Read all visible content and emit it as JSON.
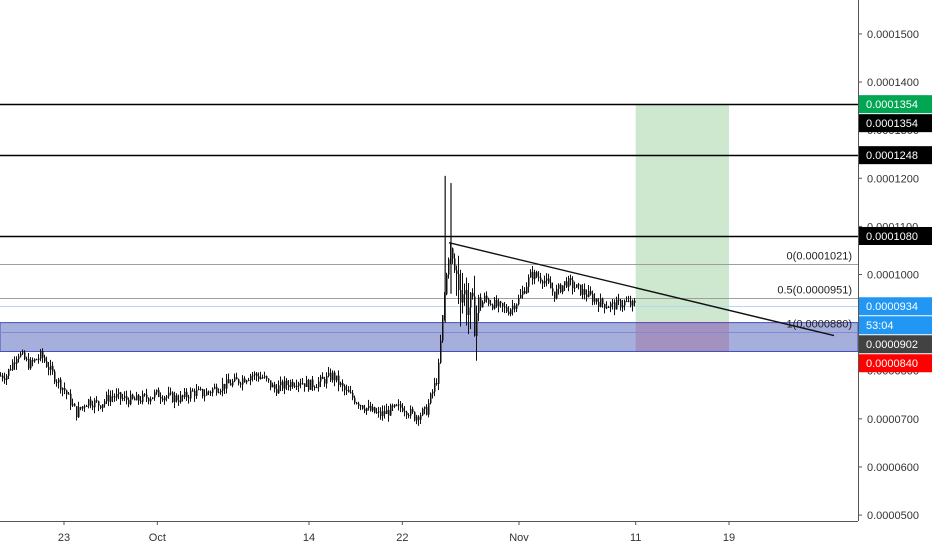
{
  "chart_data": {
    "type": "candlestick",
    "y_ticks": [
      "0.0001500",
      "0.0001400",
      "0.0001300",
      "0.0001200",
      "0.0001100",
      "0.0001000",
      "0.0000900",
      "0.0000800",
      "0.0000700",
      "0.0000600",
      "0.0000500"
    ],
    "x_ticks": [
      "23",
      "Oct",
      "14",
      "22",
      "Nov",
      "11",
      "19"
    ],
    "x_dates": [
      "2019-09-23",
      "2019-10-01",
      "2019-10-14",
      "2019-10-22",
      "2019-11-01",
      "2019-11-11",
      "2019-11-19"
    ],
    "ylim": [
      4.96e-05,
      0.0001558
    ],
    "horizontal_levels": [
      {
        "price": 0.0001354,
        "color": "#000000"
      },
      {
        "price": 0.0001248,
        "color": "#000000"
      },
      {
        "price": 0.000108,
        "color": "#000000"
      }
    ],
    "fib_levels": [
      {
        "label": "0(0.0001021)",
        "price": 0.0001021
      },
      {
        "label": "0.5(0.0000951)",
        "price": 9.51e-05
      },
      {
        "label": "1(0.0000880)",
        "price": 8.8e-05
      }
    ],
    "price_tags": [
      {
        "text": "0.0001354",
        "price": 0.0001354,
        "bg": "#00a651",
        "fg": "#ffffff"
      },
      {
        "text": "0.0001354",
        "price": 0.0001354,
        "bg": "#000000",
        "fg": "#ffffff"
      },
      {
        "text": "0.0001248",
        "price": 0.0001248,
        "bg": "#000000",
        "fg": "#ffffff"
      },
      {
        "text": "0.0001080",
        "price": 0.000108,
        "bg": "#000000",
        "fg": "#ffffff"
      },
      {
        "text": "0.0000934",
        "price": 9.34e-05,
        "bg": "#2196f3",
        "fg": "#ffffff"
      },
      {
        "text": "53:04",
        "price": 9.17e-05,
        "bg": "#2196f3",
        "fg": "#ffffff"
      },
      {
        "text": "0.0000902",
        "price": 9.02e-05,
        "bg": "#424242",
        "fg": "#ffffff"
      },
      {
        "text": "0.0000840",
        "price": 8.4e-05,
        "bg": "#ff0000",
        "fg": "#ffffff"
      }
    ],
    "position": {
      "entry": 9.02e-05,
      "target": 0.0001354,
      "stop": 8.4e-05,
      "start_date": "2019-11-11",
      "end_date": "2019-11-19"
    },
    "trendline": {
      "from": [
        "2019-10-26",
        0.0001066
      ],
      "to": [
        "2019-11-28",
        8.73e-05
      ]
    },
    "zone": {
      "top": 9e-05,
      "bottom": 8.4e-05
    },
    "series": [
      {
        "values": [
          [
            "2019-09-18",
            7.9e-05
          ],
          [
            "2019-09-19",
            8.38e-05
          ],
          [
            "2019-09-20",
            8.12e-05
          ],
          [
            "2019-09-21",
            8.32e-05
          ],
          [
            "2019-09-22",
            7.92e-05
          ],
          [
            "2019-09-23",
            7.6e-05
          ],
          [
            "2019-09-24",
            7.12e-05
          ],
          [
            "2019-09-25",
            7.38e-05
          ],
          [
            "2019-09-26",
            7.3e-05
          ],
          [
            "2019-09-27",
            7.48e-05
          ],
          [
            "2019-09-28",
            7.42e-05
          ],
          [
            "2019-09-29",
            7.38e-05
          ],
          [
            "2019-09-30",
            7.44e-05
          ],
          [
            "2019-10-01",
            7.52e-05
          ],
          [
            "2019-10-02",
            7.45e-05
          ],
          [
            "2019-10-03",
            7.42e-05
          ],
          [
            "2019-10-04",
            7.56e-05
          ],
          [
            "2019-10-05",
            7.52e-05
          ],
          [
            "2019-10-06",
            7.65e-05
          ],
          [
            "2019-10-07",
            7.72e-05
          ],
          [
            "2019-10-08",
            7.8e-05
          ],
          [
            "2019-10-09",
            7.92e-05
          ],
          [
            "2019-10-10",
            7.86e-05
          ],
          [
            "2019-10-11",
            7.62e-05
          ],
          [
            "2019-10-12",
            7.72e-05
          ],
          [
            "2019-10-13",
            7.8e-05
          ],
          [
            "2019-10-14",
            7.7e-05
          ],
          [
            "2019-10-15",
            7.78e-05
          ],
          [
            "2019-10-16",
            7.9e-05
          ],
          [
            "2019-10-17",
            7.58e-05
          ],
          [
            "2019-10-18",
            7.38e-05
          ],
          [
            "2019-10-19",
            7.2e-05
          ],
          [
            "2019-10-20",
            7.08e-05
          ],
          [
            "2019-10-21",
            7.18e-05
          ],
          [
            "2019-10-22",
            7.25e-05
          ],
          [
            "2019-10-23",
            7.05e-05
          ],
          [
            "2019-10-24",
            7.16e-05
          ],
          [
            "2019-10-25",
            7.9e-05
          ],
          [
            "2019-10-25T12:00",
            9.4e-05
          ],
          [
            "2019-10-26",
            0.000106
          ],
          [
            "2019-10-26T12:00",
            0.0001
          ],
          [
            "2019-10-27",
            9.75e-05
          ],
          [
            "2019-10-28",
            9.1e-05
          ],
          [
            "2019-10-29",
            9.5e-05
          ],
          [
            "2019-10-30",
            9.35e-05
          ],
          [
            "2019-10-31",
            9.25e-05
          ],
          [
            "2019-11-01",
            9.5e-05
          ],
          [
            "2019-11-02",
            0.0001
          ],
          [
            "2019-11-03",
            9.92e-05
          ],
          [
            "2019-11-04",
            9.6e-05
          ],
          [
            "2019-11-05",
            9.85e-05
          ],
          [
            "2019-11-06",
            9.7e-05
          ],
          [
            "2019-11-07",
            9.55e-05
          ],
          [
            "2019-11-08",
            9.4e-05
          ],
          [
            "2019-11-09",
            9.35e-05
          ],
          [
            "2019-11-10",
            9.42e-05
          ],
          [
            "2019-11-11",
            9.34e-05
          ]
        ]
      }
    ]
  }
}
